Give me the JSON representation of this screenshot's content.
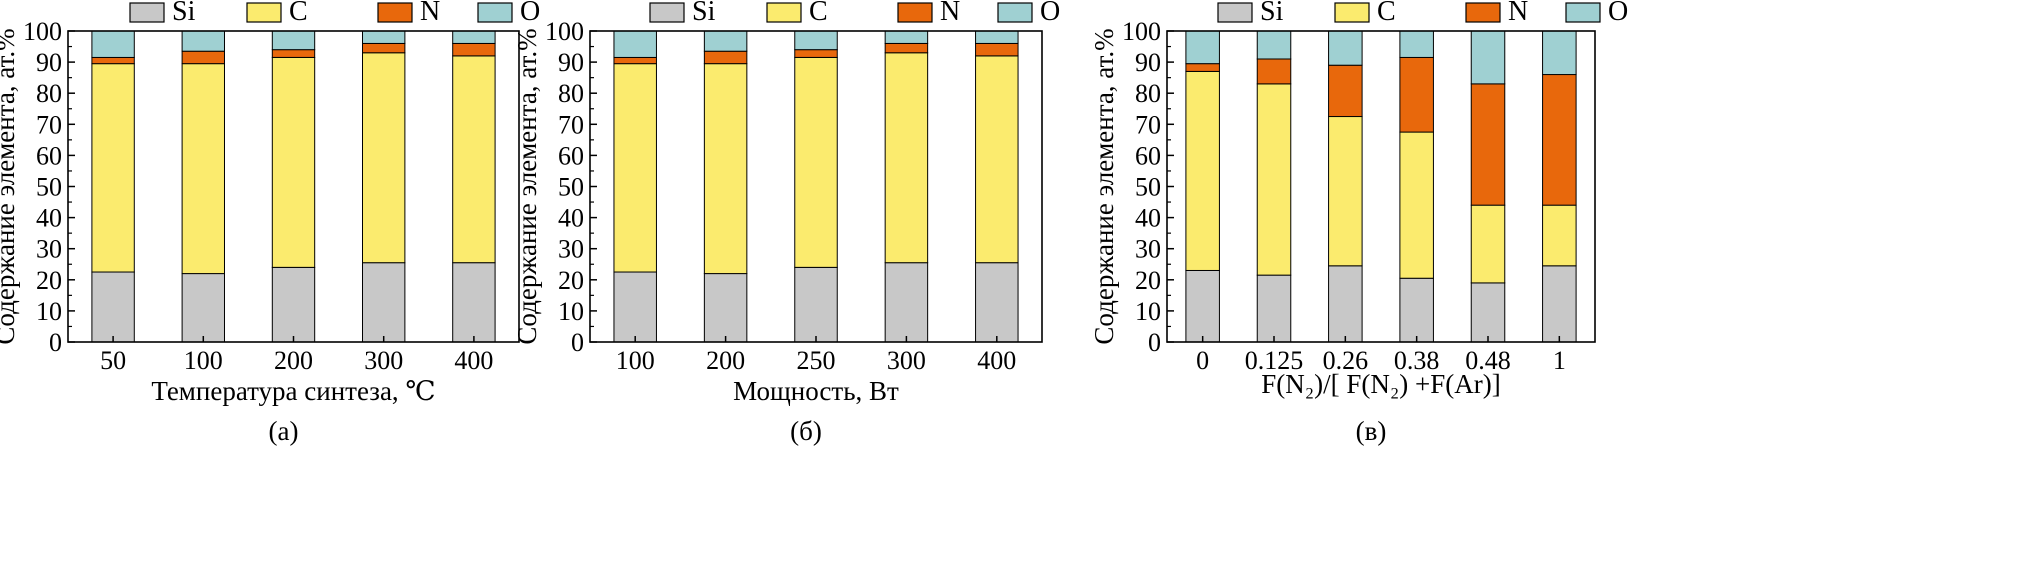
{
  "colors": {
    "Si": "#c8c8c8",
    "C": "#fbeb6e",
    "N": "#e8680c",
    "O": "#9fd0d2"
  },
  "legend": [
    "Si",
    "C",
    "N",
    "O"
  ],
  "chart_data": [
    {
      "type": "bar",
      "stacked": true,
      "panel_label": "(а)",
      "xlabel": "Температура синтеза, ℃",
      "ylabel": "Содержание элемента, ат.%",
      "ylim": [
        0,
        100
      ],
      "yticks": [
        0,
        10,
        20,
        30,
        40,
        50,
        60,
        70,
        80,
        90,
        100
      ],
      "categories": [
        "50",
        "100",
        "200",
        "300",
        "400"
      ],
      "legend_position": "top",
      "series": [
        {
          "name": "Si",
          "values": [
            22.5,
            22,
            24,
            25.5,
            25.5
          ]
        },
        {
          "name": "C",
          "values": [
            67,
            67.5,
            67.5,
            67.5,
            66.5
          ]
        },
        {
          "name": "N",
          "values": [
            2,
            4,
            2.5,
            3,
            4
          ]
        },
        {
          "name": "O",
          "values": [
            8.5,
            6.5,
            6,
            4,
            4
          ]
        }
      ]
    },
    {
      "type": "bar",
      "stacked": true,
      "panel_label": "(б)",
      "xlabel": "Мощность, Вт",
      "ylabel": "Содержание элемента, ат.%",
      "ylim": [
        0,
        100
      ],
      "yticks": [
        0,
        10,
        20,
        30,
        40,
        50,
        60,
        70,
        80,
        90,
        100
      ],
      "categories": [
        "100",
        "200",
        "250",
        "300",
        "400"
      ],
      "legend_position": "top",
      "series": [
        {
          "name": "Si",
          "values": [
            22.5,
            22,
            24,
            25.5,
            25.5
          ]
        },
        {
          "name": "C",
          "values": [
            67,
            67.5,
            67.5,
            67.5,
            66.5
          ]
        },
        {
          "name": "N",
          "values": [
            2,
            4,
            2.5,
            3,
            4
          ]
        },
        {
          "name": "O",
          "values": [
            8.5,
            6.5,
            6,
            4,
            4
          ]
        }
      ]
    },
    {
      "type": "bar",
      "stacked": true,
      "panel_label": "(в)",
      "xlabel": "F(N₂)/[ F(N₂) +F(Ar)]",
      "ylabel": "Содержание элемента, ат.%",
      "ylim": [
        0,
        100
      ],
      "yticks": [
        0,
        10,
        20,
        30,
        40,
        50,
        60,
        70,
        80,
        90,
        100
      ],
      "categories": [
        "0",
        "0.125",
        "0.26",
        "0.38",
        "0.48",
        "1"
      ],
      "legend_position": "top",
      "series": [
        {
          "name": "Si",
          "values": [
            23,
            21.5,
            24.5,
            20.5,
            19,
            24.5
          ]
        },
        {
          "name": "C",
          "values": [
            64,
            61.5,
            48,
            47,
            25,
            19.5
          ]
        },
        {
          "name": "N",
          "values": [
            2.5,
            8,
            16.5,
            24,
            39,
            42
          ]
        },
        {
          "name": "O",
          "values": [
            10.5,
            9,
            11,
            8.5,
            17,
            14
          ]
        }
      ]
    }
  ]
}
